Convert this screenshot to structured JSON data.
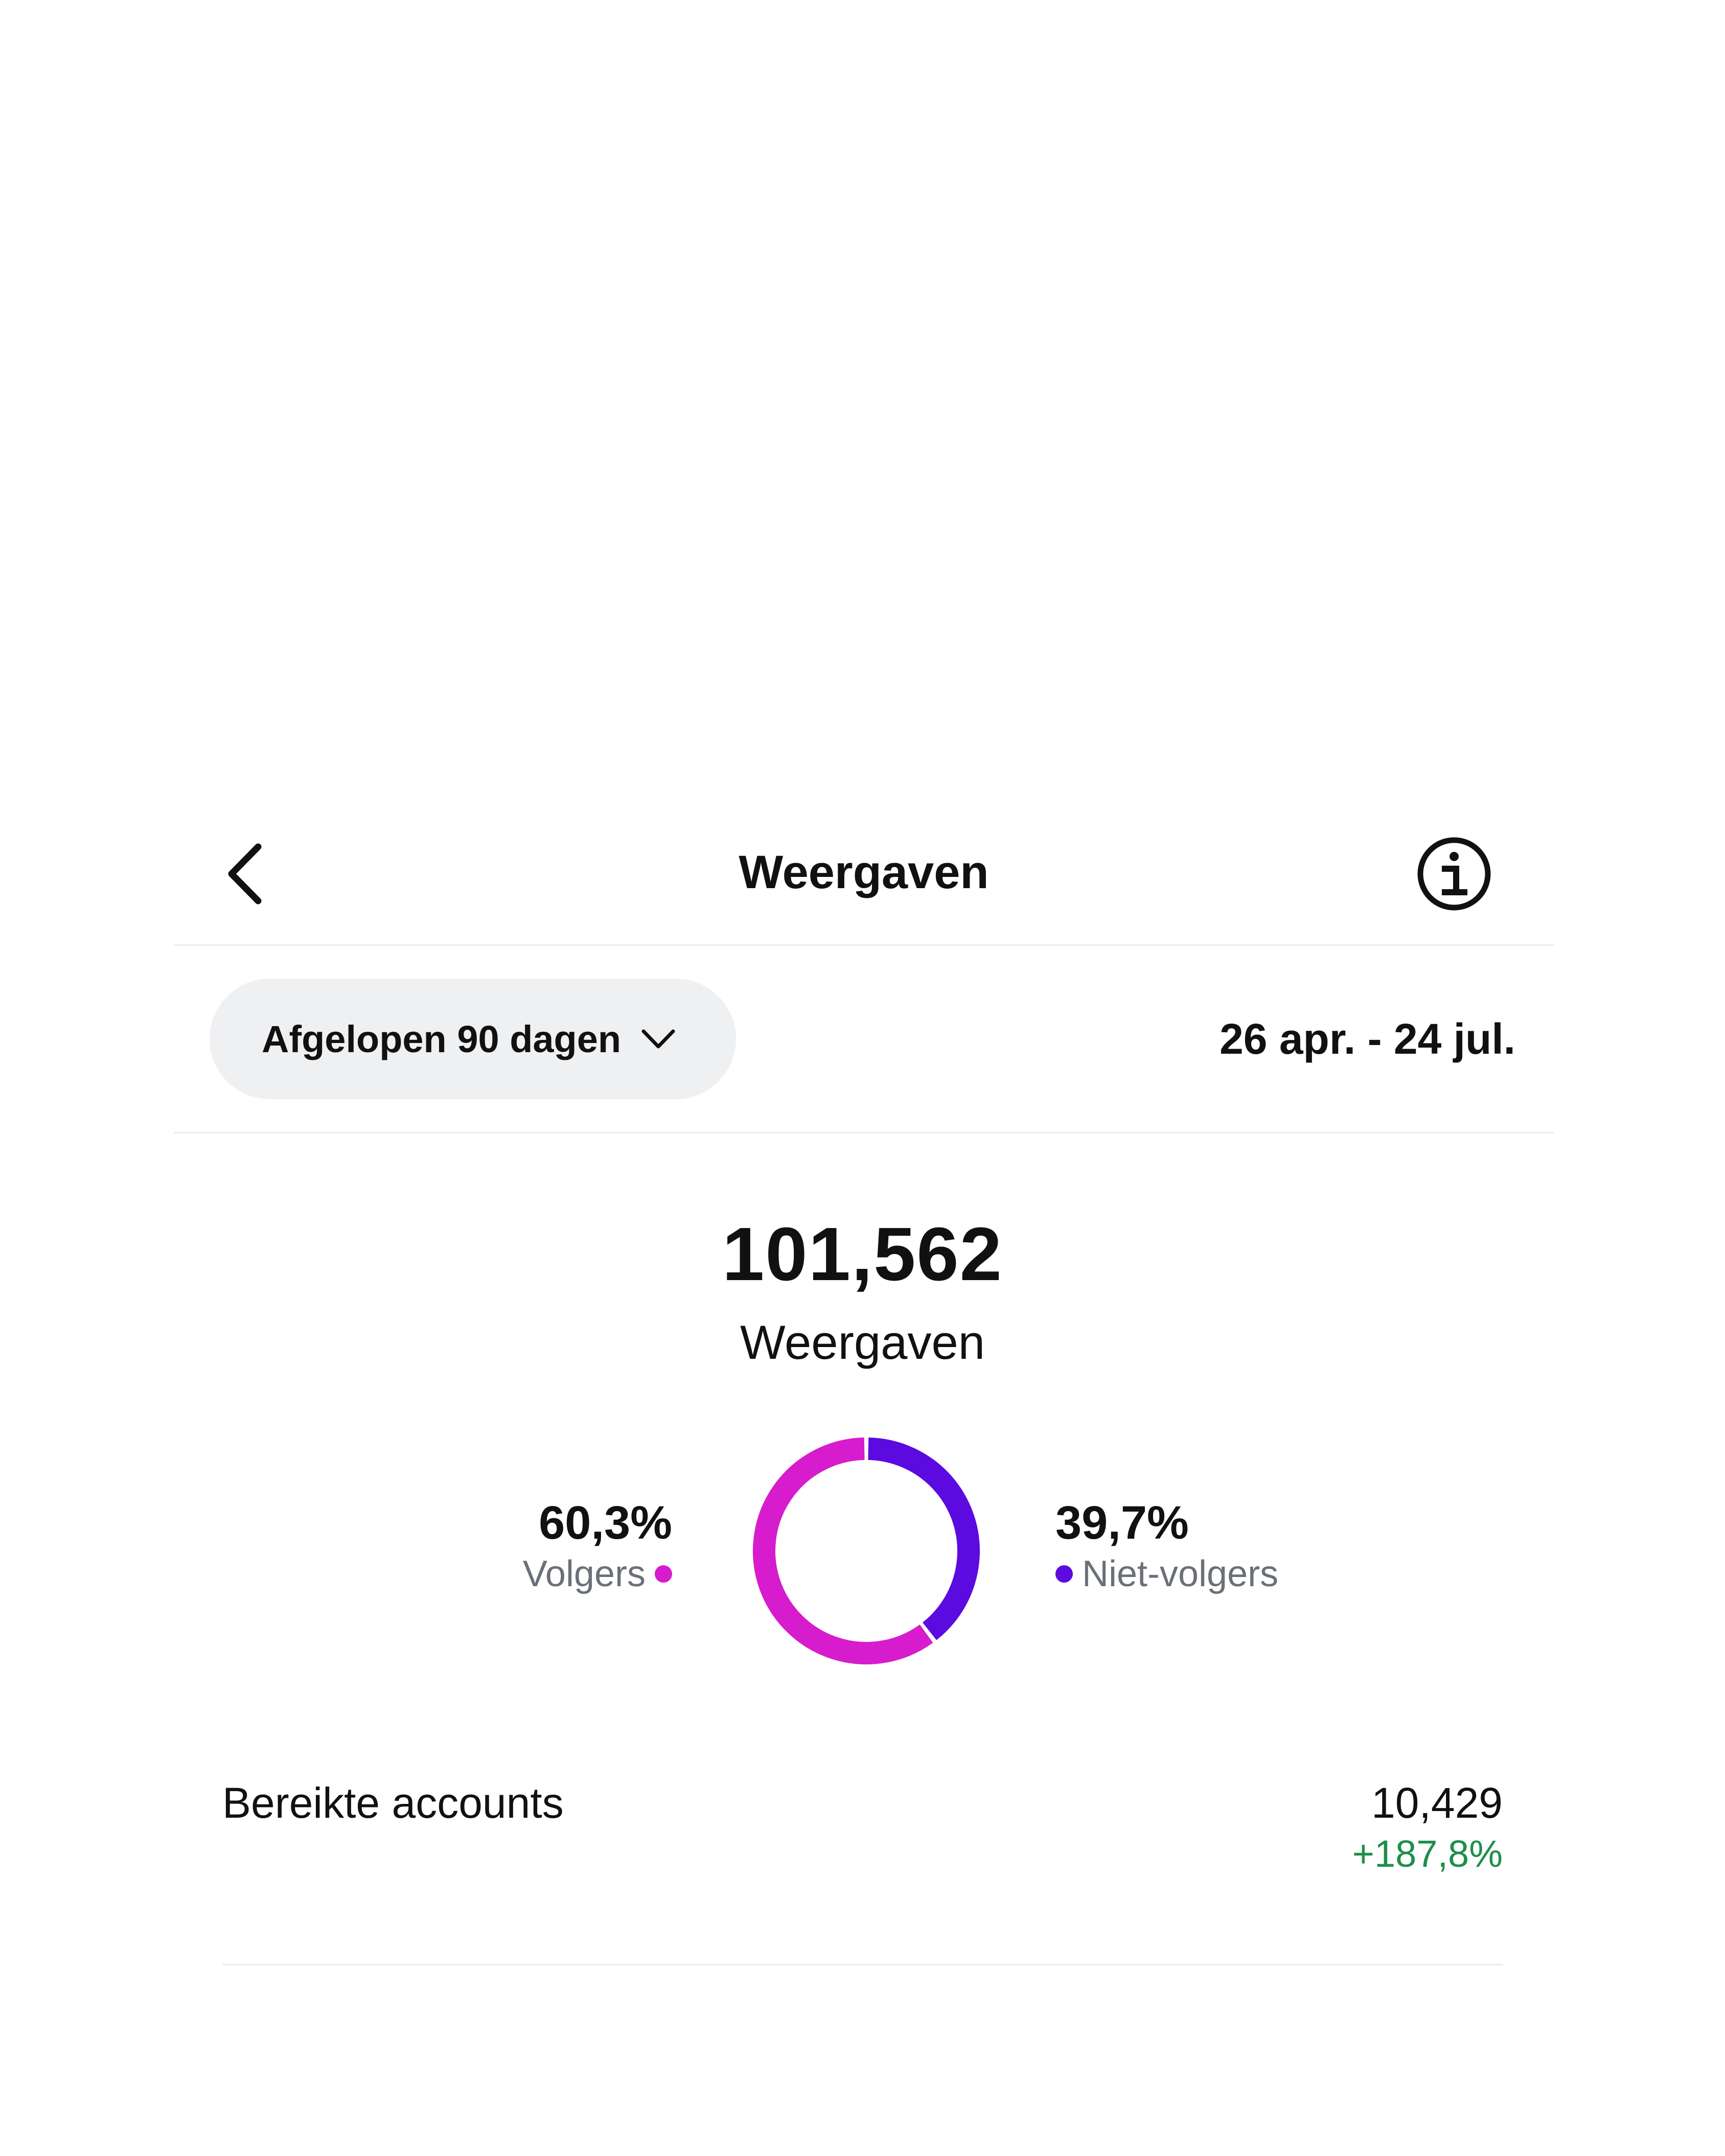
{
  "header": {
    "title": "Weergaven",
    "back_icon": "chevron-left-icon",
    "info_icon": "info-icon"
  },
  "filter": {
    "period_label": "Afgelopen 90 dagen",
    "dropdown_icon": "chevron-down-icon",
    "date_range": "26 apr. - 24 jul."
  },
  "summary": {
    "total_value": "101,562",
    "total_label": "Weergaven"
  },
  "breakdown": {
    "followers": {
      "percent_text": "60,3%",
      "label": "Volgers",
      "color": "#d61ccc"
    },
    "non_followers": {
      "percent_text": "39,7%",
      "label": "Niet-volgers",
      "color": "#5b0ae0"
    }
  },
  "chart_data": {
    "type": "pie",
    "categories": [
      "Volgers",
      "Niet-volgers"
    ],
    "values": [
      60.3,
      39.7
    ],
    "colors": [
      "#d61ccc",
      "#5b0ae0"
    ]
  },
  "metrics": [
    {
      "label": "Bereikte accounts",
      "value": "10,429",
      "change": "+187,8%",
      "change_color": "#1e8e4a"
    }
  ]
}
